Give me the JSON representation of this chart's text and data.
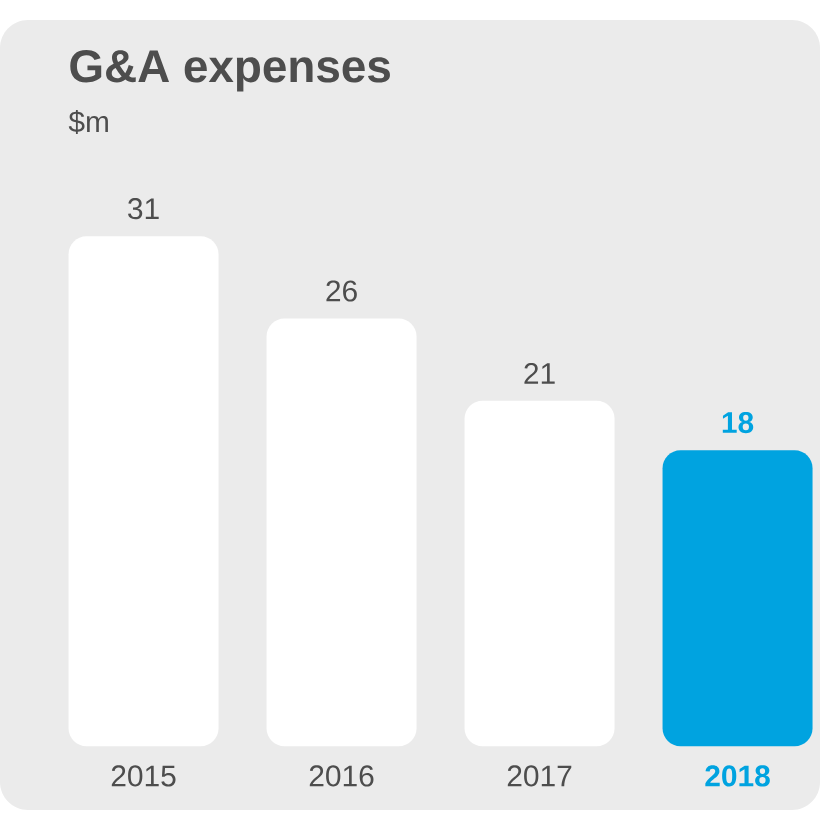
{
  "chart_data": {
    "type": "bar",
    "title": "G&A expenses",
    "ylabel": "$m",
    "categories": [
      "2015",
      "2016",
      "2017",
      "2018"
    ],
    "values": [
      31,
      26,
      21,
      18
    ],
    "colors": [
      "#ffffff",
      "#ffffff",
      "#ffffff",
      "#00a3e0"
    ],
    "data_labels": true
  }
}
